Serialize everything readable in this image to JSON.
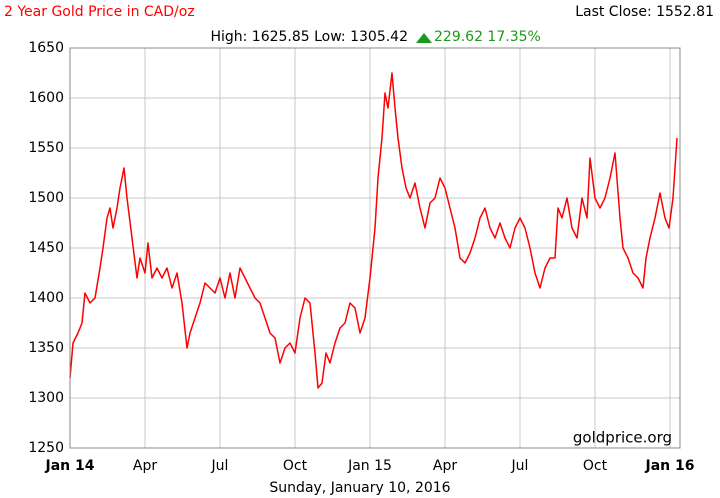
{
  "chart_data": {
    "type": "line",
    "title": "2 Year Gold Price in CAD/oz",
    "last_close": "Last Close: 1552.81",
    "stats": "High: 1625.85 Low: 1305.42",
    "change": "229.62 17.35%",
    "watermark": "goldprice.org",
    "date": "Sunday, January 10, 2016",
    "color": "#ff0000",
    "grid": true,
    "xlim": [
      0,
      24.4
    ],
    "xticks": [
      {
        "value": 0,
        "label": "Jan 14"
      },
      {
        "value": 3,
        "label": "Apr"
      },
      {
        "value": 6,
        "label": "Jul"
      },
      {
        "value": 9,
        "label": "Oct"
      },
      {
        "value": 12,
        "label": "Jan 15"
      },
      {
        "value": 15,
        "label": "Apr"
      },
      {
        "value": 18,
        "label": "Jul"
      },
      {
        "value": 21,
        "label": "Oct"
      },
      {
        "value": 24,
        "label": "Jan 16"
      }
    ],
    "ylim": [
      1250,
      1650
    ],
    "yticks": [
      1250,
      1300,
      1350,
      1400,
      1450,
      1500,
      1550,
      1600,
      1650
    ],
    "x": [
      0,
      0.12,
      0.32,
      0.48,
      0.6,
      0.8,
      1.0,
      1.2,
      1.32,
      1.48,
      1.6,
      1.72,
      1.88,
      2.0,
      2.16,
      2.28,
      2.48,
      2.68,
      2.8,
      3.0,
      3.12,
      3.28,
      3.48,
      3.68,
      3.88,
      4.08,
      4.28,
      4.48,
      4.68,
      4.8,
      5.0,
      5.2,
      5.4,
      5.6,
      5.8,
      6.0,
      6.2,
      6.4,
      6.6,
      6.8,
      7.0,
      7.2,
      7.4,
      7.6,
      7.8,
      8.0,
      8.2,
      8.4,
      8.6,
      8.8,
      9.0,
      9.2,
      9.4,
      9.6,
      9.8,
      9.92,
      10.08,
      10.24,
      10.4,
      10.6,
      10.8,
      11.0,
      11.2,
      11.4,
      11.6,
      11.8,
      12.0,
      12.2,
      12.32,
      12.48,
      12.6,
      12.72,
      12.88,
      13.0,
      13.12,
      13.28,
      13.44,
      13.6,
      13.8,
      14.0,
      14.2,
      14.4,
      14.6,
      14.8,
      15.0,
      15.2,
      15.4,
      15.6,
      15.8,
      16.0,
      16.2,
      16.4,
      16.6,
      16.8,
      17.0,
      17.2,
      17.4,
      17.6,
      17.8,
      18.0,
      18.2,
      18.4,
      18.6,
      18.8,
      19.0,
      19.2,
      19.4,
      19.52,
      19.68,
      19.88,
      20.08,
      20.28,
      20.48,
      20.68,
      20.8,
      21.0,
      21.2,
      21.4,
      21.6,
      21.8,
      22.0,
      22.12,
      22.32,
      22.52,
      22.72,
      22.92,
      23.04,
      23.2,
      23.4,
      23.6,
      23.8,
      23.96,
      24.12,
      24.28
    ],
    "values": [
      1320,
      1355,
      1365,
      1375,
      1405,
      1395,
      1400,
      1430,
      1450,
      1480,
      1490,
      1470,
      1490,
      1510,
      1530,
      1500,
      1460,
      1420,
      1440,
      1425,
      1455,
      1420,
      1430,
      1420,
      1430,
      1410,
      1425,
      1395,
      1350,
      1365,
      1380,
      1395,
      1415,
      1410,
      1405,
      1420,
      1400,
      1425,
      1400,
      1430,
      1420,
      1410,
      1400,
      1395,
      1380,
      1365,
      1360,
      1335,
      1350,
      1355,
      1345,
      1380,
      1400,
      1395,
      1345,
      1310,
      1315,
      1345,
      1335,
      1355,
      1370,
      1375,
      1395,
      1390,
      1365,
      1380,
      1420,
      1470,
      1520,
      1560,
      1605,
      1590,
      1625,
      1590,
      1560,
      1530,
      1510,
      1500,
      1515,
      1490,
      1470,
      1495,
      1500,
      1520,
      1510,
      1490,
      1470,
      1440,
      1435,
      1445,
      1460,
      1480,
      1490,
      1470,
      1460,
      1475,
      1460,
      1450,
      1470,
      1480,
      1470,
      1450,
      1425,
      1410,
      1430,
      1440,
      1440,
      1490,
      1480,
      1500,
      1470,
      1460,
      1500,
      1480,
      1540,
      1500,
      1490,
      1500,
      1520,
      1545,
      1480,
      1450,
      1440,
      1425,
      1420,
      1410,
      1440,
      1460,
      1480,
      1505,
      1480,
      1470,
      1500,
      1560
    ]
  }
}
